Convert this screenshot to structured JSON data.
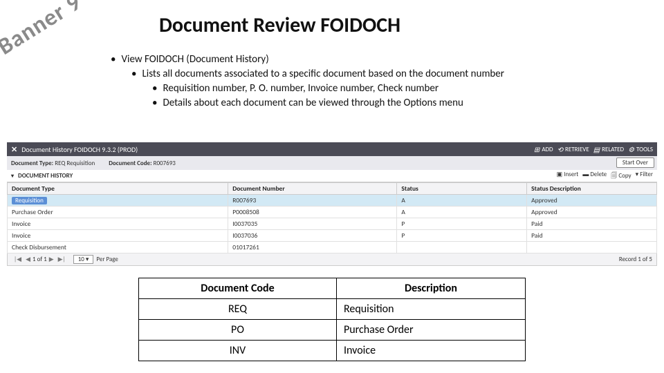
{
  "watermark": "Banner 9",
  "title": "Document Review FOIDOCH",
  "bullets": {
    "l1": "View FOIDOCH (Document History)",
    "l2": "Lists all documents associated to a specific document based on the document number",
    "l3a": "Requisition number, P. O. number, Invoice number, Check number",
    "l3b": "Details about each document can be viewed through the Options menu"
  },
  "app": {
    "close": "✕",
    "title": "Document History FOIDOCH 9.3.2 (PROD)",
    "actions": {
      "add": "ADD",
      "retrieve": "RETRIEVE",
      "related": "RELATED",
      "tools": "TOOLS"
    },
    "key": {
      "docTypeLabel": "Document Type:",
      "docTypeVal": "REQ  Requisition",
      "docCodeLabel": "Document Code:",
      "docCodeVal": "R007693",
      "startOver": "Start Over"
    },
    "section": {
      "name": "DOCUMENT HISTORY",
      "insert": "Insert",
      "delete": "Delete",
      "copy": "Copy",
      "filter": "Filter"
    },
    "columns": {
      "docType": "Document Type",
      "docNum": "Document Number",
      "status": "Status",
      "statusDesc": "Status Description"
    },
    "rows": [
      {
        "dt": "Requisition",
        "dn": "R007693",
        "st": "A",
        "sd": "Approved",
        "sel": true,
        "chip": true
      },
      {
        "dt": "Purchase Order",
        "dn": "P0008508",
        "st": "A",
        "sd": "Approved"
      },
      {
        "dt": "Invoice",
        "dn": "I0037035",
        "st": "P",
        "sd": "Paid"
      },
      {
        "dt": "Invoice",
        "dn": "I0037036",
        "st": "P",
        "sd": "Paid"
      },
      {
        "dt": "Check Disbursement",
        "dn": "01017261",
        "st": "",
        "sd": ""
      }
    ],
    "pager": {
      "pagetext": "1 of 1",
      "perPage": "10",
      "perPageLabel": "Per Page",
      "recordText": "Record 1 of 5"
    }
  },
  "reftable": {
    "h1": "Document Code",
    "h2": "Description",
    "rows": [
      {
        "code": "REQ",
        "desc": "Requisition"
      },
      {
        "code": "PO",
        "desc": "Purchase Order"
      },
      {
        "code": "INV",
        "desc": "Invoice"
      }
    ]
  }
}
